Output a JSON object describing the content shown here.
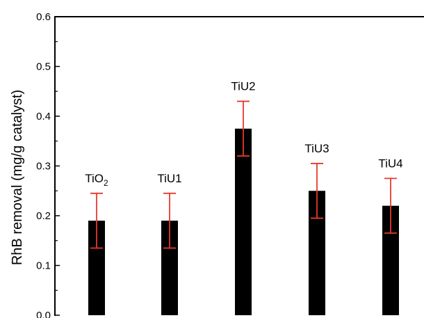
{
  "chart_data": {
    "type": "bar",
    "title": "",
    "xlabel": "",
    "ylabel": "RhB removal (mg/g catalyst)",
    "ylim": [
      0.0,
      0.6
    ],
    "yticks": [
      "0.0",
      "0.1",
      "0.2",
      "0.3",
      "0.4",
      "0.5",
      "0.6"
    ],
    "minor_ytick_step": 0.05,
    "grid": false,
    "legend": "none",
    "categories": [
      {
        "label": "TiO",
        "subscript": "2"
      },
      {
        "label": "TiU1",
        "subscript": ""
      },
      {
        "label": "TiU2",
        "subscript": ""
      },
      {
        "label": "TiU3",
        "subscript": ""
      },
      {
        "label": "TiU4",
        "subscript": ""
      }
    ],
    "values": [
      0.19,
      0.19,
      0.375,
      0.25,
      0.22
    ],
    "errors": [
      0.055,
      0.055,
      0.055,
      0.055,
      0.055
    ],
    "colors": {
      "bar": "#000000",
      "error_bar": "#e8392b",
      "axis": "#000000"
    }
  }
}
